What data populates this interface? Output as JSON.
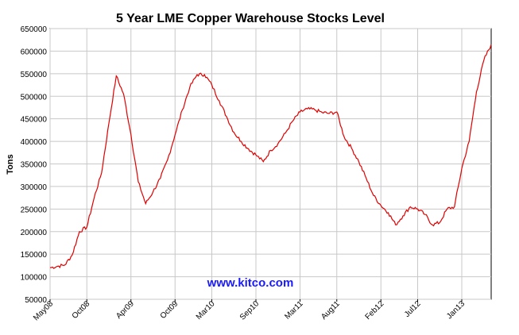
{
  "chart_data": {
    "type": "line",
    "title": "5 Year LME Copper Warehouse Stocks Level",
    "xlabel": "",
    "ylabel": "Tons",
    "watermark": "www.kitco.com",
    "ylim": [
      50000,
      650000
    ],
    "yticks": [
      50000,
      100000,
      150000,
      200000,
      250000,
      300000,
      350000,
      400000,
      450000,
      500000,
      550000,
      600000,
      650000
    ],
    "xlim": [
      "2008-05",
      "2013-05"
    ],
    "xticks": [
      "May08",
      "Oct08",
      "Apr09",
      "Oct09",
      "Mar10",
      "Sep10",
      "Mar11",
      "Aug11",
      "Feb12",
      "Jul12",
      "Jan13"
    ],
    "grid": true,
    "legend": "none",
    "line_color": "#e00000",
    "series": [
      {
        "x": [
          "2008-05",
          "2008-06",
          "2008-07",
          "2008-08",
          "2008-09",
          "2008-10",
          "2008-11",
          "2008-12",
          "2009-01",
          "2009-02",
          "2009-03",
          "2009-04",
          "2009-05",
          "2009-06",
          "2009-07",
          "2009-08",
          "2009-09",
          "2009-10",
          "2009-11",
          "2009-12",
          "2010-01",
          "2010-02",
          "2010-03",
          "2010-04",
          "2010-05",
          "2010-06",
          "2010-07",
          "2010-08",
          "2010-09",
          "2010-10",
          "2010-11",
          "2010-12",
          "2011-01",
          "2011-02",
          "2011-03",
          "2011-04",
          "2011-05",
          "2011-06",
          "2011-07",
          "2011-08",
          "2011-09",
          "2011-10",
          "2011-11",
          "2011-12",
          "2012-01",
          "2012-02",
          "2012-03",
          "2012-04",
          "2012-05",
          "2012-06",
          "2012-07",
          "2012-08",
          "2012-09",
          "2012-10",
          "2012-11",
          "2012-12",
          "2013-01",
          "2013-02",
          "2013-03",
          "2013-04",
          "2013-05"
        ],
        "values": [
          120000,
          123000,
          126000,
          148000,
          200000,
          210000,
          275000,
          330000,
          440000,
          545000,
          505000,
          415000,
          310000,
          262000,
          288000,
          318000,
          360000,
          415000,
          470000,
          520000,
          548000,
          548000,
          525000,
          490000,
          455000,
          420000,
          400000,
          383000,
          370000,
          355000,
          380000,
          395000,
          418000,
          445000,
          465000,
          472000,
          470000,
          464000,
          462000,
          465000,
          410000,
          385000,
          355000,
          318000,
          280000,
          258000,
          242000,
          215000,
          235000,
          255000,
          250000,
          238000,
          215000,
          220000,
          250000,
          255000,
          340000,
          400000,
          510000,
          580000,
          615000
        ]
      }
    ]
  }
}
